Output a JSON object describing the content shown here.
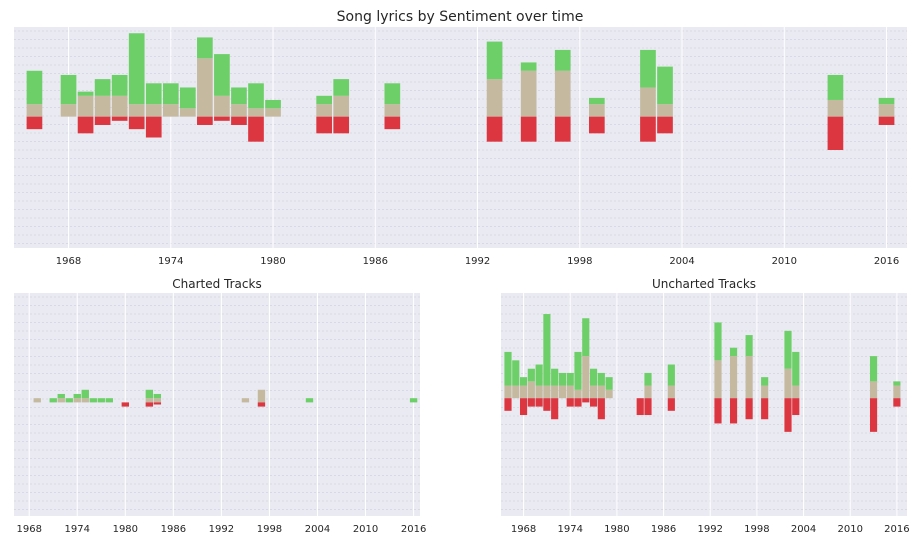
{
  "figure": {
    "title": "Song lyrics by Sentiment over time"
  },
  "colors": {
    "positive": "#6dcf68",
    "neutral": "#c5b9a0",
    "negative": "#dc3640",
    "panel_bg": "#eaeaf2",
    "grid_major": "#ffffff",
    "grid_minor": "#c8c8d6"
  },
  "chart_data": [
    {
      "type": "bar",
      "stacked": true,
      "title": "",
      "xlabel": "",
      "ylabel": "",
      "xlim": [
        1964.8,
        2017.2
      ],
      "ylim": [
        -6.3,
        4.3
      ],
      "x_ticks": [
        "1968",
        "1974",
        "1980",
        "1986",
        "1992",
        "1998",
        "2004",
        "2010",
        "2016"
      ],
      "grid": true,
      "y_tick_labels_shown": false,
      "x": [
        1966,
        1968,
        1969,
        1970,
        1971,
        1972,
        1973,
        1974,
        1975,
        1976,
        1977,
        1978,
        1979,
        1980,
        1983,
        1984,
        1987,
        1993,
        1995,
        1997,
        1999,
        2002,
        2003,
        2013,
        2016
      ],
      "series": [
        {
          "values": [
            1.6,
            1.4,
            0.2,
            0.8,
            1.0,
            3.4,
            1.0,
            1.0,
            1.0,
            1.0,
            2.0,
            0.8,
            1.2,
            0.4,
            0.4,
            0.8,
            1.0,
            1.8,
            0.4,
            1.0,
            0.3,
            1.8,
            1.8,
            1.2,
            0.3
          ]
        },
        {
          "values": [
            0.6,
            0.6,
            1.0,
            1.0,
            1.0,
            0.6,
            0.6,
            0.6,
            0.4,
            2.8,
            1.0,
            0.6,
            0.4,
            0.4,
            0.6,
            1.0,
            0.6,
            1.8,
            2.2,
            2.2,
            0.6,
            1.4,
            0.6,
            0.8,
            0.6
          ]
        },
        {
          "values": [
            -0.6,
            0,
            -0.8,
            -0.4,
            -0.2,
            -0.6,
            -1.0,
            0,
            0,
            -0.4,
            -0.2,
            -0.4,
            -1.2,
            0,
            -0.8,
            -0.8,
            -0.6,
            -1.2,
            -1.2,
            -1.2,
            -0.8,
            -1.2,
            -0.8,
            -1.6,
            -0.4
          ]
        }
      ]
    },
    {
      "type": "bar",
      "stacked": true,
      "title": "Charted Tracks",
      "xlabel": "",
      "ylabel": "",
      "xlim": [
        1966.1,
        2016.8
      ],
      "ylim": [
        -5.4,
        5.2
      ],
      "x_ticks": [
        "1968",
        "1974",
        "1980",
        "1986",
        "1992",
        "1998",
        "2004",
        "2010",
        "2016"
      ],
      "grid": true,
      "y_tick_labels_shown": false,
      "x": [
        1969,
        1971,
        1972,
        1973,
        1974,
        1975,
        1976,
        1977,
        1978,
        1980,
        1983,
        1984,
        1995,
        1997,
        2003,
        2016
      ],
      "series": [
        {
          "values": [
            0,
            0.2,
            0.2,
            0.2,
            0.2,
            0.4,
            0.2,
            0.2,
            0.2,
            0,
            0.4,
            0.2,
            0,
            0,
            0.2,
            0.2
          ]
        },
        {
          "values": [
            0.2,
            0,
            0.2,
            0,
            0.2,
            0.2,
            0,
            0,
            0,
            0,
            0.2,
            0.2,
            0.2,
            0.6,
            0,
            0
          ]
        },
        {
          "values": [
            0,
            0,
            0,
            0,
            0,
            0,
            0,
            0,
            0,
            -0.2,
            -0.2,
            -0.1,
            0,
            -0.2,
            0,
            0
          ]
        }
      ]
    },
    {
      "type": "bar",
      "stacked": true,
      "title": "Uncharted Tracks",
      "xlabel": "",
      "ylabel": "",
      "xlim": [
        1965.1,
        2017.3
      ],
      "ylim": [
        -5.6,
        5.0
      ],
      "x_ticks": [
        "1968",
        "1974",
        "1980",
        "1986",
        "1992",
        "1998",
        "2004",
        "2010",
        "2016"
      ],
      "grid": true,
      "y_tick_labels_shown": false,
      "x": [
        1966,
        1967,
        1968,
        1969,
        1970,
        1971,
        1972,
        1973,
        1974,
        1975,
        1976,
        1977,
        1978,
        1979,
        1983,
        1984,
        1987,
        1993,
        1995,
        1997,
        1999,
        2002,
        2003,
        2013,
        2016
      ],
      "series": [
        {
          "values": [
            1.6,
            1.2,
            0.4,
            0.6,
            1.0,
            3.4,
            0.8,
            0.6,
            0.6,
            1.8,
            1.8,
            0.8,
            0.6,
            0.6,
            0,
            0.6,
            1.0,
            1.8,
            0.4,
            1.0,
            0.4,
            1.8,
            1.6,
            1.2,
            0.2
          ]
        },
        {
          "values": [
            0.6,
            0.6,
            0.6,
            0.8,
            0.6,
            0.6,
            0.6,
            0.6,
            0.6,
            0.4,
            2.0,
            0.6,
            0.6,
            0.4,
            0,
            0.6,
            0.6,
            1.8,
            2.0,
            2.0,
            0.6,
            1.4,
            0.6,
            0.8,
            0.6
          ]
        },
        {
          "values": [
            -0.6,
            0,
            -0.8,
            -0.4,
            -0.4,
            -0.6,
            -1.0,
            0,
            -0.4,
            -0.4,
            -0.2,
            -0.4,
            -1.0,
            0,
            -0.8,
            -0.8,
            -0.6,
            -1.2,
            -1.2,
            -1.0,
            -1.0,
            -1.6,
            -0.8,
            -1.6,
            -0.4
          ]
        }
      ]
    }
  ]
}
